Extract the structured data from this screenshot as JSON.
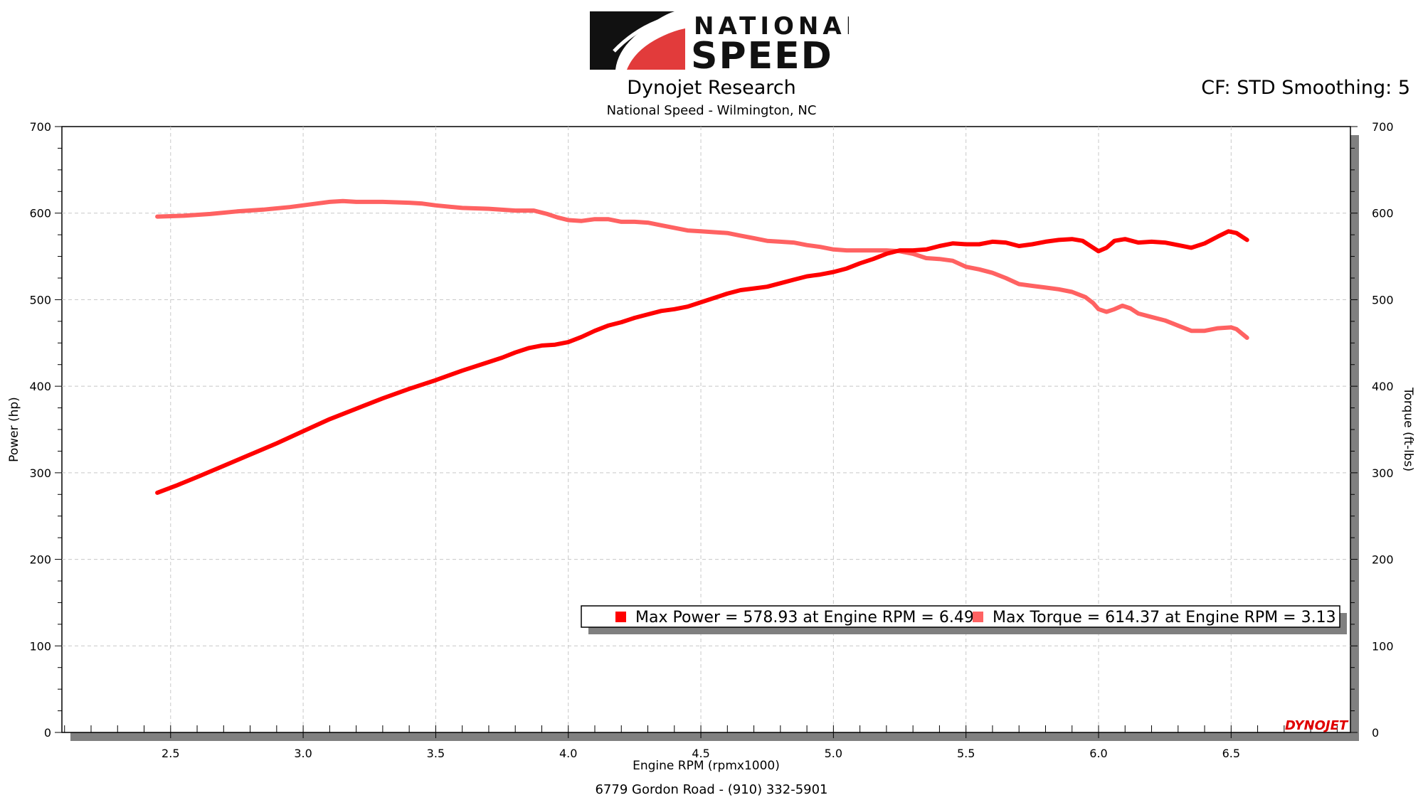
{
  "header": {
    "brand_top": "NATIONAL",
    "brand_bottom": "SPEED",
    "title": "Dynojet Research",
    "subtitle": "National Speed - Wilmington, NC",
    "cf_info": "CF: STD Smoothing: 5"
  },
  "footer": {
    "address": "6779 Gordon Road - (910) 332-5901"
  },
  "watermark": "DYNOJET",
  "colors": {
    "power": "#ff0000",
    "torque": "#ff6262",
    "grid": "#c8c8c8",
    "shadow": "#808080"
  },
  "chart_data": {
    "type": "line",
    "xlabel": "Engine RPM (rpmx1000)",
    "ylabel_left": "Power (hp)",
    "ylabel_right": "Torque (ft-lbs)",
    "xlim": [
      2.09,
      6.95
    ],
    "ylim": [
      0,
      700
    ],
    "x_ticks": [
      "2.5",
      "3.0",
      "3.5",
      "4.0",
      "4.5",
      "5.0",
      "5.5",
      "6.0",
      "6.5"
    ],
    "y_ticks": [
      "0",
      "100",
      "200",
      "300",
      "400",
      "500",
      "600",
      "700"
    ],
    "grid": true,
    "legend": [
      {
        "text": "Max Power = 578.93 at Engine RPM = 6.49",
        "series": "power"
      },
      {
        "text": "Max Torque = 614.37 at Engine RPM = 3.13",
        "series": "torque"
      }
    ],
    "series": [
      {
        "name": "Power",
        "axis": "left",
        "points": [
          [
            2.45,
            277
          ],
          [
            2.52,
            285
          ],
          [
            2.6,
            295
          ],
          [
            2.7,
            308
          ],
          [
            2.8,
            321
          ],
          [
            2.9,
            334
          ],
          [
            3.0,
            348
          ],
          [
            3.1,
            362
          ],
          [
            3.2,
            374
          ],
          [
            3.3,
            386
          ],
          [
            3.4,
            397
          ],
          [
            3.5,
            407
          ],
          [
            3.6,
            418
          ],
          [
            3.7,
            428
          ],
          [
            3.75,
            433
          ],
          [
            3.8,
            439
          ],
          [
            3.85,
            444
          ],
          [
            3.9,
            447
          ],
          [
            3.95,
            448
          ],
          [
            4.0,
            451
          ],
          [
            4.05,
            457
          ],
          [
            4.1,
            464
          ],
          [
            4.15,
            470
          ],
          [
            4.2,
            474
          ],
          [
            4.25,
            479
          ],
          [
            4.3,
            483
          ],
          [
            4.35,
            487
          ],
          [
            4.4,
            489
          ],
          [
            4.45,
            492
          ],
          [
            4.5,
            497
          ],
          [
            4.55,
            502
          ],
          [
            4.6,
            507
          ],
          [
            4.65,
            511
          ],
          [
            4.7,
            513
          ],
          [
            4.75,
            515
          ],
          [
            4.8,
            519
          ],
          [
            4.85,
            523
          ],
          [
            4.9,
            527
          ],
          [
            4.95,
            529
          ],
          [
            5.0,
            532
          ],
          [
            5.05,
            536
          ],
          [
            5.1,
            542
          ],
          [
            5.15,
            547
          ],
          [
            5.2,
            553
          ],
          [
            5.25,
            557
          ],
          [
            5.3,
            557
          ],
          [
            5.35,
            558
          ],
          [
            5.4,
            562
          ],
          [
            5.45,
            565
          ],
          [
            5.5,
            564
          ],
          [
            5.55,
            564
          ],
          [
            5.6,
            567
          ],
          [
            5.65,
            566
          ],
          [
            5.7,
            562
          ],
          [
            5.75,
            564
          ],
          [
            5.8,
            567
          ],
          [
            5.85,
            569
          ],
          [
            5.9,
            570
          ],
          [
            5.94,
            568
          ],
          [
            5.97,
            562
          ],
          [
            6.0,
            556
          ],
          [
            6.03,
            560
          ],
          [
            6.06,
            568
          ],
          [
            6.1,
            570
          ],
          [
            6.15,
            566
          ],
          [
            6.2,
            567
          ],
          [
            6.25,
            566
          ],
          [
            6.3,
            563
          ],
          [
            6.35,
            560
          ],
          [
            6.4,
            565
          ],
          [
            6.45,
            573
          ],
          [
            6.49,
            579
          ],
          [
            6.52,
            577
          ],
          [
            6.56,
            569
          ]
        ]
      },
      {
        "name": "Torque",
        "axis": "right",
        "points": [
          [
            2.45,
            596
          ],
          [
            2.55,
            597
          ],
          [
            2.65,
            599
          ],
          [
            2.75,
            602
          ],
          [
            2.85,
            604
          ],
          [
            2.95,
            607
          ],
          [
            3.05,
            611
          ],
          [
            3.1,
            613
          ],
          [
            3.15,
            614
          ],
          [
            3.2,
            613
          ],
          [
            3.3,
            613
          ],
          [
            3.4,
            612
          ],
          [
            3.45,
            611
          ],
          [
            3.5,
            609
          ],
          [
            3.6,
            606
          ],
          [
            3.7,
            605
          ],
          [
            3.8,
            603
          ],
          [
            3.87,
            603
          ],
          [
            3.92,
            599
          ],
          [
            3.96,
            595
          ],
          [
            4.0,
            592
          ],
          [
            4.05,
            591
          ],
          [
            4.1,
            593
          ],
          [
            4.15,
            593
          ],
          [
            4.2,
            590
          ],
          [
            4.25,
            590
          ],
          [
            4.3,
            589
          ],
          [
            4.35,
            586
          ],
          [
            4.4,
            583
          ],
          [
            4.45,
            580
          ],
          [
            4.5,
            579
          ],
          [
            4.55,
            578
          ],
          [
            4.6,
            577
          ],
          [
            4.65,
            574
          ],
          [
            4.7,
            571
          ],
          [
            4.75,
            568
          ],
          [
            4.8,
            567
          ],
          [
            4.85,
            566
          ],
          [
            4.9,
            563
          ],
          [
            4.95,
            561
          ],
          [
            5.0,
            558
          ],
          [
            5.05,
            557
          ],
          [
            5.1,
            557
          ],
          [
            5.15,
            557
          ],
          [
            5.2,
            557
          ],
          [
            5.25,
            556
          ],
          [
            5.3,
            553
          ],
          [
            5.35,
            548
          ],
          [
            5.4,
            547
          ],
          [
            5.45,
            545
          ],
          [
            5.5,
            538
          ],
          [
            5.55,
            535
          ],
          [
            5.6,
            531
          ],
          [
            5.65,
            525
          ],
          [
            5.7,
            518
          ],
          [
            5.75,
            516
          ],
          [
            5.8,
            514
          ],
          [
            5.85,
            512
          ],
          [
            5.9,
            509
          ],
          [
            5.95,
            503
          ],
          [
            5.98,
            496
          ],
          [
            6.0,
            489
          ],
          [
            6.03,
            486
          ],
          [
            6.06,
            489
          ],
          [
            6.09,
            493
          ],
          [
            6.12,
            490
          ],
          [
            6.15,
            484
          ],
          [
            6.2,
            480
          ],
          [
            6.25,
            476
          ],
          [
            6.3,
            470
          ],
          [
            6.35,
            464
          ],
          [
            6.4,
            464
          ],
          [
            6.45,
            467
          ],
          [
            6.5,
            468
          ],
          [
            6.52,
            466
          ],
          [
            6.56,
            456
          ]
        ]
      }
    ]
  }
}
